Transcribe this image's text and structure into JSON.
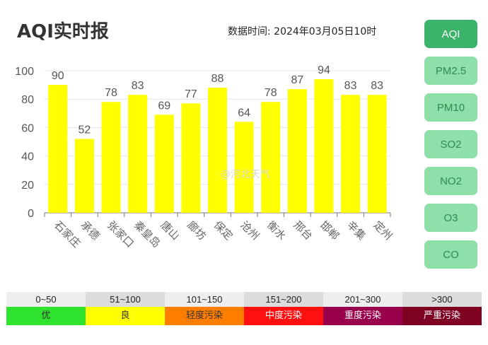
{
  "title": "AQI实时报",
  "timestamp": "数据时间:  2024年03月05日10时",
  "watermark": "@河北天气",
  "buttons": [
    "AQI",
    "PM2.5",
    "PM10",
    "SO2",
    "NO2",
    "O3",
    "CO"
  ],
  "active_button": "AQI",
  "legend": {
    "ranges": [
      "0~50",
      "51~100",
      "101~150",
      "151~200",
      "201~300",
      ">300"
    ],
    "levels": [
      "优",
      "良",
      "轻度污染",
      "中度污染",
      "重度污染",
      "严重污染"
    ],
    "colors": [
      "#2ee22e",
      "#ffff00",
      "#ff7e00",
      "#ff1010",
      "#99004c",
      "#7e0023"
    ],
    "text_colors": [
      "#333333",
      "#333333",
      "#333333",
      "#ffffff",
      "#ffffff",
      "#ffffff"
    ]
  },
  "chart_data": {
    "type": "bar",
    "title": "AQI实时报",
    "categories": [
      "石家庄",
      "承德",
      "张家口",
      "秦皇岛",
      "唐山",
      "廊坊",
      "保定",
      "沧州",
      "衡水",
      "邢台",
      "邯郸",
      "辛集",
      "定州"
    ],
    "values": [
      90,
      52,
      78,
      83,
      69,
      77,
      88,
      64,
      78,
      87,
      94,
      83,
      83
    ],
    "yticks": [
      0,
      20,
      40,
      60,
      80,
      100
    ],
    "ylim": [
      0,
      100
    ],
    "bar_color": "#ffff00",
    "grid": true
  }
}
